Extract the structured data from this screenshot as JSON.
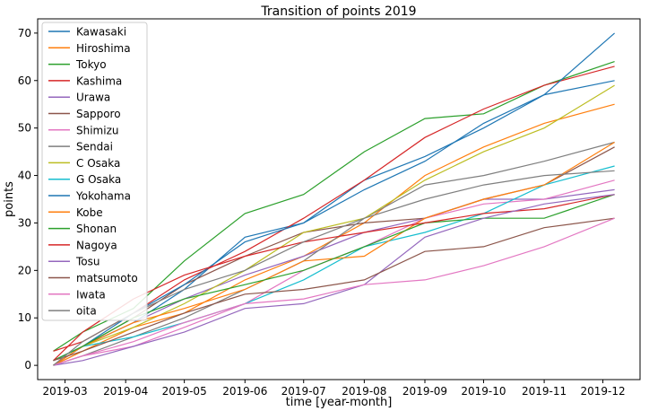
{
  "chart_data": {
    "type": "line",
    "title": "Transition of points 2019",
    "xlabel": "time [year-month]",
    "ylabel": "points",
    "xlim": [
      "2019-02-15",
      "2019-12-20"
    ],
    "ylim": [
      -3,
      73
    ],
    "x_ticks": [
      "2019-03",
      "2019-04",
      "2019-05",
      "2019-06",
      "2019-07",
      "2019-08",
      "2019-09",
      "2019-10",
      "2019-11",
      "2019-12"
    ],
    "y_ticks": [
      0,
      10,
      20,
      30,
      40,
      50,
      60,
      70
    ],
    "grid": false,
    "legend": "top-left",
    "series": [
      {
        "name": "Kawasaki",
        "color": "#1f77b4",
        "x": [
          "2019-02-23",
          "2019-03-10",
          "2019-04-05",
          "2019-05-01",
          "2019-06-01",
          "2019-07-01",
          "2019-08-01",
          "2019-09-01",
          "2019-10-01",
          "2019-11-01",
          "2019-12-07"
        ],
        "y": [
          1,
          4,
          9,
          16,
          27,
          30,
          39,
          44,
          50,
          57,
          60
        ]
      },
      {
        "name": "Hiroshima",
        "color": "#ff7f0e",
        "x": [
          "2019-02-23",
          "2019-03-10",
          "2019-04-05",
          "2019-05-01",
          "2019-06-01",
          "2019-07-01",
          "2019-08-01",
          "2019-09-01",
          "2019-10-01",
          "2019-11-01",
          "2019-12-07"
        ],
        "y": [
          0,
          3,
          8,
          11,
          18,
          23,
          30,
          40,
          46,
          51,
          55
        ]
      },
      {
        "name": "Tokyo",
        "color": "#2ca02c",
        "x": [
          "2019-02-23",
          "2019-03-10",
          "2019-04-05",
          "2019-05-01",
          "2019-06-01",
          "2019-07-01",
          "2019-08-01",
          "2019-09-01",
          "2019-10-01",
          "2019-11-01",
          "2019-12-07"
        ],
        "y": [
          3,
          7,
          12,
          22,
          32,
          36,
          45,
          52,
          53,
          59,
          64
        ]
      },
      {
        "name": "Kashima",
        "color": "#d62728",
        "x": [
          "2019-02-23",
          "2019-03-10",
          "2019-04-05",
          "2019-05-01",
          "2019-06-01",
          "2019-07-01",
          "2019-08-01",
          "2019-09-01",
          "2019-10-01",
          "2019-11-01",
          "2019-12-07"
        ],
        "y": [
          3,
          5,
          11,
          18,
          24,
          31,
          39,
          48,
          54,
          59,
          63
        ]
      },
      {
        "name": "Urawa",
        "color": "#9467bd",
        "x": [
          "2019-02-23",
          "2019-03-10",
          "2019-04-05",
          "2019-05-01",
          "2019-06-01",
          "2019-07-01",
          "2019-08-01",
          "2019-09-01",
          "2019-10-01",
          "2019-11-01",
          "2019-12-07"
        ],
        "y": [
          1,
          4,
          9,
          14,
          19,
          23,
          28,
          31,
          35,
          35,
          37
        ]
      },
      {
        "name": "Sapporo",
        "color": "#8c564b",
        "x": [
          "2019-02-23",
          "2019-03-10",
          "2019-04-05",
          "2019-05-01",
          "2019-06-01",
          "2019-07-01",
          "2019-08-01",
          "2019-09-01",
          "2019-10-01",
          "2019-11-01",
          "2019-12-07"
        ],
        "y": [
          0,
          4,
          10,
          17,
          23,
          28,
          30,
          31,
          35,
          38,
          46
        ]
      },
      {
        "name": "Shimizu",
        "color": "#e377c2",
        "x": [
          "2019-02-23",
          "2019-03-10",
          "2019-04-05",
          "2019-05-01",
          "2019-06-01",
          "2019-07-01",
          "2019-08-01",
          "2019-09-01",
          "2019-10-01",
          "2019-11-01",
          "2019-12-07"
        ],
        "y": [
          0,
          2,
          4,
          8,
          13,
          20,
          25,
          31,
          34,
          35,
          39
        ]
      },
      {
        "name": "Sendai",
        "color": "#7f7f7f",
        "x": [
          "2019-02-23",
          "2019-03-10",
          "2019-04-05",
          "2019-05-01",
          "2019-06-01",
          "2019-07-01",
          "2019-08-01",
          "2019-09-01",
          "2019-10-01",
          "2019-11-01",
          "2019-12-07"
        ],
        "y": [
          0,
          2,
          6,
          10,
          16,
          22,
          31,
          38,
          40,
          43,
          47
        ]
      },
      {
        "name": "C Osaka",
        "color": "#bcbd22",
        "x": [
          "2019-02-23",
          "2019-03-10",
          "2019-04-05",
          "2019-05-01",
          "2019-06-01",
          "2019-07-01",
          "2019-08-01",
          "2019-09-01",
          "2019-10-01",
          "2019-11-01",
          "2019-12-07"
        ],
        "y": [
          1,
          4,
          8,
          13,
          20,
          28,
          31,
          39,
          45,
          50,
          59
        ]
      },
      {
        "name": "G Osaka",
        "color": "#17becf",
        "x": [
          "2019-02-23",
          "2019-03-10",
          "2019-04-05",
          "2019-05-01",
          "2019-06-01",
          "2019-07-01",
          "2019-08-01",
          "2019-09-01",
          "2019-10-01",
          "2019-11-01",
          "2019-12-07"
        ],
        "y": [
          1,
          4,
          6,
          9,
          13,
          18,
          25,
          28,
          32,
          38,
          42
        ]
      },
      {
        "name": "Yokohama",
        "color": "#1f77b4",
        "x": [
          "2019-02-23",
          "2019-03-10",
          "2019-04-05",
          "2019-05-01",
          "2019-06-01",
          "2019-07-01",
          "2019-08-01",
          "2019-09-01",
          "2019-10-01",
          "2019-11-01",
          "2019-12-07"
        ],
        "y": [
          0,
          4,
          11,
          17,
          26,
          30,
          37,
          43,
          51,
          57,
          70
        ]
      },
      {
        "name": "Kobe",
        "color": "#ff7f0e",
        "x": [
          "2019-02-23",
          "2019-03-10",
          "2019-04-05",
          "2019-05-01",
          "2019-06-01",
          "2019-07-01",
          "2019-08-01",
          "2019-09-01",
          "2019-10-01",
          "2019-11-01",
          "2019-12-07"
        ],
        "y": [
          0,
          4,
          9,
          12,
          16,
          22,
          23,
          31,
          35,
          38,
          47
        ]
      },
      {
        "name": "Shonan",
        "color": "#2ca02c",
        "x": [
          "2019-02-23",
          "2019-03-10",
          "2019-04-05",
          "2019-05-01",
          "2019-06-01",
          "2019-07-01",
          "2019-08-01",
          "2019-09-01",
          "2019-10-01",
          "2019-11-01",
          "2019-12-07"
        ],
        "y": [
          1,
          4,
          10,
          14,
          17,
          20,
          25,
          30,
          31,
          31,
          36
        ]
      },
      {
        "name": "Nagoya",
        "color": "#d62728",
        "x": [
          "2019-02-23",
          "2019-03-10",
          "2019-04-05",
          "2019-05-01",
          "2019-06-01",
          "2019-07-01",
          "2019-08-01",
          "2019-09-01",
          "2019-10-01",
          "2019-11-01",
          "2019-12-07"
        ],
        "y": [
          1,
          7,
          14,
          19,
          23,
          26,
          28,
          30,
          32,
          33,
          36
        ]
      },
      {
        "name": "Tosu",
        "color": "#9467bd",
        "x": [
          "2019-02-23",
          "2019-03-10",
          "2019-04-05",
          "2019-05-01",
          "2019-06-01",
          "2019-07-01",
          "2019-08-01",
          "2019-09-01",
          "2019-10-01",
          "2019-11-01",
          "2019-12-07"
        ],
        "y": [
          0,
          1,
          4,
          7,
          12,
          13,
          17,
          27,
          31,
          34,
          36
        ]
      },
      {
        "name": "matsumoto",
        "color": "#8c564b",
        "x": [
          "2019-02-23",
          "2019-03-10",
          "2019-04-05",
          "2019-05-01",
          "2019-06-01",
          "2019-07-01",
          "2019-08-01",
          "2019-09-01",
          "2019-10-01",
          "2019-11-01",
          "2019-12-07"
        ],
        "y": [
          1,
          3,
          7,
          11,
          15,
          16,
          18,
          24,
          25,
          29,
          31
        ]
      },
      {
        "name": "Iwata",
        "color": "#e377c2",
        "x": [
          "2019-02-23",
          "2019-03-10",
          "2019-04-05",
          "2019-05-01",
          "2019-06-01",
          "2019-07-01",
          "2019-08-01",
          "2019-09-01",
          "2019-10-01",
          "2019-11-01",
          "2019-12-07"
        ],
        "y": [
          0,
          2,
          5,
          9,
          13,
          14,
          17,
          18,
          21,
          25,
          31
        ]
      },
      {
        "name": "oita",
        "color": "#7f7f7f",
        "x": [
          "2019-02-23",
          "2019-03-10",
          "2019-04-05",
          "2019-05-01",
          "2019-06-01",
          "2019-07-01",
          "2019-08-01",
          "2019-09-01",
          "2019-10-01",
          "2019-11-01",
          "2019-12-07"
        ],
        "y": [
          0,
          5,
          11,
          16,
          20,
          26,
          31,
          35,
          38,
          40,
          41
        ]
      }
    ]
  }
}
